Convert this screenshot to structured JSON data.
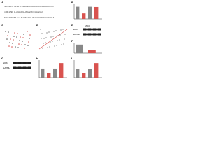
{
  "panels": [
    {
      "letter": "A",
      "lines": [
        "SOX4 3'UTR-wt  5'-UAGGGUAUCUGUCAAAUCCCA",
        "miR-1290  3'-AGGGGUAGGUCCUAGGU",
        "SOX4 3'UTR-mut 5'-UAGGGUAUCUGUCGGGGAGA"
      ]
    },
    {
      "letter": "B",
      "values": [
        1.0,
        0.45,
        1.0,
        0.98
      ],
      "colors": [
        "#888888",
        "#d9534f",
        "#888888",
        "#d9534f"
      ]
    },
    {
      "letter": "C"
    },
    {
      "letter": "D"
    },
    {
      "letter": "E",
      "bands": [
        "SOX4",
        "GAPDH"
      ],
      "header": "ESCC"
    },
    {
      "letter": "F",
      "values": [
        1.0,
        0.4
      ],
      "colors": [
        "#888888",
        "#d9534f"
      ]
    },
    {
      "letter": "G",
      "bands": [
        "SOX4",
        "GAPDH"
      ]
    },
    {
      "letter": "H",
      "values": [
        1.0,
        0.5,
        1.0,
        1.6
      ],
      "colors": [
        "#888888",
        "#d9534f",
        "#888888",
        "#d9534f"
      ]
    },
    {
      "letter": "I",
      "values": [
        1.0,
        0.55,
        1.0,
        1.7
      ],
      "colors": [
        "#888888",
        "#d9534f",
        "#888888",
        "#d9534f"
      ]
    }
  ]
}
